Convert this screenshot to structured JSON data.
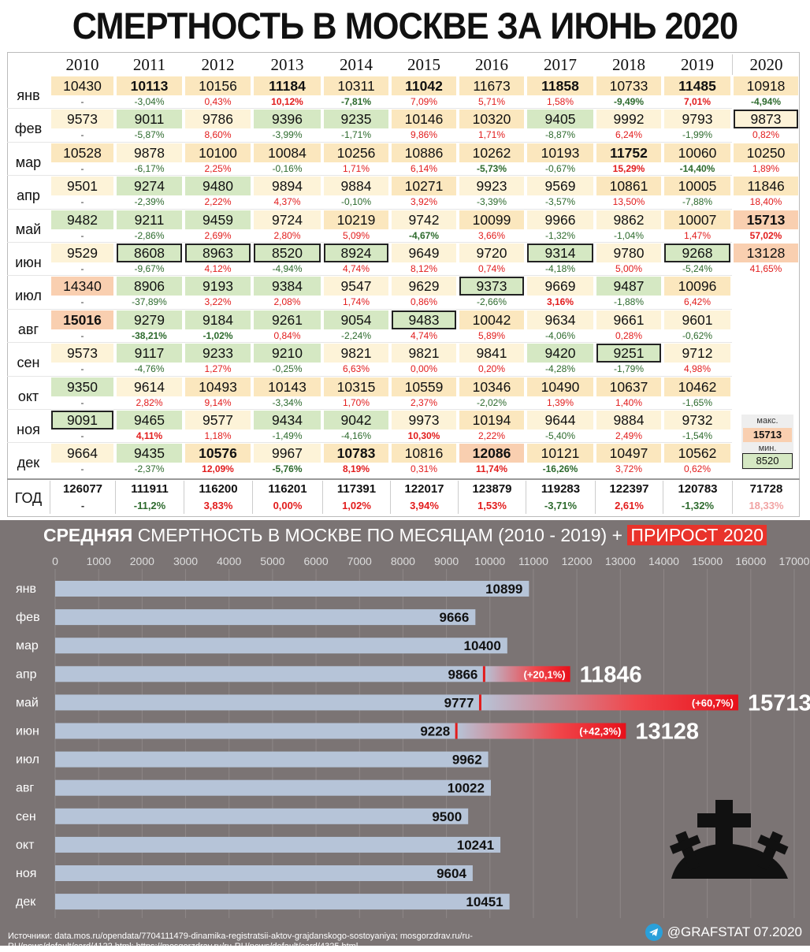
{
  "title": "СМЕРТНОСТЬ В МОСКВЕ ЗА ИЮНЬ 2020",
  "table": {
    "years": [
      "2010",
      "2011",
      "2012",
      "2013",
      "2014",
      "2015",
      "2016",
      "2017",
      "2018",
      "2019",
      "2020"
    ],
    "months": [
      "янв",
      "фев",
      "мар",
      "апр",
      "май",
      "июн",
      "июл",
      "авг",
      "сен",
      "окт",
      "ноя",
      "дек"
    ],
    "rows": [
      {
        "values": [
          "10430",
          "10113",
          "10156",
          "11184",
          "10311",
          "11042",
          "11673",
          "11858",
          "10733",
          "11485",
          "10918"
        ],
        "pct": [
          "-",
          "-3,04%",
          "0,43%",
          "10,12%",
          "-7,81%",
          "7,09%",
          "5,71%",
          "1,58%",
          "-9,49%",
          "7,01%",
          "-4,94%"
        ],
        "bold": [
          1,
          3,
          5,
          7,
          9
        ],
        "boldpct": [
          3,
          4,
          8,
          9,
          10
        ],
        "boxed": []
      },
      {
        "values": [
          "9573",
          "9011",
          "9786",
          "9396",
          "9235",
          "10146",
          "10320",
          "9405",
          "9992",
          "9793",
          "9873"
        ],
        "pct": [
          "-",
          "-5,87%",
          "8,60%",
          "-3,99%",
          "-1,71%",
          "9,86%",
          "1,71%",
          "-8,87%",
          "6,24%",
          "-1,99%",
          "0,82%"
        ],
        "bold": [],
        "boldpct": [],
        "boxed": [
          10
        ]
      },
      {
        "values": [
          "10528",
          "9878",
          "10100",
          "10084",
          "10256",
          "10886",
          "10262",
          "10193",
          "11752",
          "10060",
          "10250"
        ],
        "pct": [
          "-",
          "-6,17%",
          "2,25%",
          "-0,16%",
          "1,71%",
          "6,14%",
          "-5,73%",
          "-0,67%",
          "15,29%",
          "-14,40%",
          "1,89%"
        ],
        "bold": [
          8
        ],
        "boldpct": [
          6,
          8,
          9
        ],
        "boxed": []
      },
      {
        "values": [
          "9501",
          "9274",
          "9480",
          "9894",
          "9884",
          "10271",
          "9923",
          "9569",
          "10861",
          "10005",
          "11846"
        ],
        "pct": [
          "-",
          "-2,39%",
          "2,22%",
          "4,37%",
          "-0,10%",
          "3,92%",
          "-3,39%",
          "-3,57%",
          "13,50%",
          "-7,88%",
          "18,40%"
        ],
        "bold": [],
        "boldpct": [],
        "boxed": []
      },
      {
        "values": [
          "9482",
          "9211",
          "9459",
          "9724",
          "10219",
          "9742",
          "10099",
          "9966",
          "9862",
          "10007",
          "15713"
        ],
        "pct": [
          "-",
          "-2,86%",
          "2,69%",
          "2,80%",
          "5,09%",
          "-4,67%",
          "3,66%",
          "-1,32%",
          "-1,04%",
          "1,47%",
          "57,02%"
        ],
        "bold": [
          10
        ],
        "boldpct": [
          5,
          10
        ],
        "boxed": []
      },
      {
        "values": [
          "9529",
          "8608",
          "8963",
          "8520",
          "8924",
          "9649",
          "9720",
          "9314",
          "9780",
          "9268",
          "13128"
        ],
        "pct": [
          "-",
          "-9,67%",
          "4,12%",
          "-4,94%",
          "4,74%",
          "8,12%",
          "0,74%",
          "-4,18%",
          "5,00%",
          "-5,24%",
          "41,65%"
        ],
        "bold": [],
        "boldpct": [],
        "boxed": [
          1,
          2,
          3,
          4,
          7,
          9
        ]
      },
      {
        "values": [
          "14340",
          "8906",
          "9193",
          "9384",
          "9547",
          "9629",
          "9373",
          "9669",
          "9487",
          "10096",
          ""
        ],
        "pct": [
          "-",
          "-37,89%",
          "3,22%",
          "2,08%",
          "1,74%",
          "0,86%",
          "-2,66%",
          "3,16%",
          "-1,88%",
          "6,42%",
          ""
        ],
        "bold": [],
        "boldpct": [
          7
        ],
        "boxed": [
          6
        ]
      },
      {
        "values": [
          "15016",
          "9279",
          "9184",
          "9261",
          "9054",
          "9483",
          "10042",
          "9634",
          "9661",
          "9601",
          ""
        ],
        "pct": [
          "-",
          "-38,21%",
          "-1,02%",
          "0,84%",
          "-2,24%",
          "4,74%",
          "5,89%",
          "-4,06%",
          "0,28%",
          "-0,62%",
          ""
        ],
        "bold": [
          0
        ],
        "boldpct": [
          1,
          2
        ],
        "boxed": [
          5
        ]
      },
      {
        "values": [
          "9573",
          "9117",
          "9233",
          "9210",
          "9821",
          "9821",
          "9841",
          "9420",
          "9251",
          "9712",
          ""
        ],
        "pct": [
          "-",
          "-4,76%",
          "1,27%",
          "-0,25%",
          "6,63%",
          "0,00%",
          "0,20%",
          "-4,28%",
          "-1,79%",
          "4,98%",
          ""
        ],
        "bold": [],
        "boldpct": [],
        "boxed": [
          8
        ]
      },
      {
        "values": [
          "9350",
          "9614",
          "10493",
          "10143",
          "10315",
          "10559",
          "10346",
          "10490",
          "10637",
          "10462",
          ""
        ],
        "pct": [
          "-",
          "2,82%",
          "9,14%",
          "-3,34%",
          "1,70%",
          "2,37%",
          "-2,02%",
          "1,39%",
          "1,40%",
          "-1,65%",
          ""
        ],
        "bold": [],
        "boldpct": [],
        "boxed": []
      },
      {
        "values": [
          "9091",
          "9465",
          "9577",
          "9434",
          "9042",
          "9973",
          "10194",
          "9644",
          "9884",
          "9732",
          ""
        ],
        "pct": [
          "-",
          "4,11%",
          "1,18%",
          "-1,49%",
          "-4,16%",
          "10,30%",
          "2,22%",
          "-5,40%",
          "2,49%",
          "-1,54%",
          ""
        ],
        "bold": [],
        "boldpct": [
          1,
          5
        ],
        "boxed": [
          0
        ]
      },
      {
        "values": [
          "9664",
          "9435",
          "10576",
          "9967",
          "10783",
          "10816",
          "12086",
          "10121",
          "10497",
          "10562",
          ""
        ],
        "pct": [
          "-",
          "-2,37%",
          "12,09%",
          "-5,76%",
          "8,19%",
          "0,31%",
          "11,74%",
          "-16,26%",
          "3,72%",
          "0,62%",
          ""
        ],
        "bold": [
          2,
          4,
          6
        ],
        "boldpct": [
          2,
          3,
          4,
          6,
          7
        ],
        "boxed": []
      }
    ],
    "year_label": "ГОД",
    "totals": [
      "126077",
      "111911",
      "116200",
      "116201",
      "117391",
      "122017",
      "123879",
      "119283",
      "122397",
      "120783",
      "71728"
    ],
    "total_pct": [
      "-",
      "-11,2%",
      "3,83%",
      "0,00%",
      "1,02%",
      "3,94%",
      "1,53%",
      "-3,71%",
      "2,61%",
      "-1,32%",
      "18,33%"
    ],
    "legend": {
      "max_label": "макс.",
      "max_value": "15713",
      "min_label": "мин.",
      "min_value": "8520"
    }
  },
  "colors": {
    "green": "#d5e8c3",
    "yellow_light": "#fdf3d8",
    "yellow": "#fbe7be",
    "orange": "#f9cfb0",
    "red": "#e21c1c",
    "dark_green": "#2d6a2d",
    "panel": "#7b7474",
    "bar": "#b6c4d8"
  },
  "chart_title": {
    "part1": "СРЕДНЯЯ",
    "part2": " СМЕРТНОСТЬ В МОСКВЕ ПО МЕСЯЦАМ (2010 - 2019) + ",
    "part3": "ПРИРОСТ 2020"
  },
  "chart_data": {
    "type": "bar",
    "orientation": "horizontal",
    "categories": [
      "янв",
      "фев",
      "мар",
      "апр",
      "май",
      "июн",
      "июл",
      "авг",
      "сен",
      "окт",
      "ноя",
      "дек"
    ],
    "values": [
      10899,
      9666,
      10400,
      9866,
      9777,
      9228,
      9962,
      10022,
      9500,
      10241,
      9604,
      10451
    ],
    "increase_2020": [
      {
        "month": "апр",
        "value": 11846,
        "label": "(+20,1%)"
      },
      {
        "month": "май",
        "value": 15713,
        "label": "(+60,7%)"
      },
      {
        "month": "июн",
        "value": 13128,
        "label": "(+42,3%)"
      }
    ],
    "xlim": [
      0,
      17000
    ],
    "ticks": [
      "0",
      "1000",
      "2000",
      "3000",
      "4000",
      "5000",
      "6000",
      "7000",
      "8000",
      "9000",
      "10000",
      "11000",
      "12000",
      "13000",
      "14000",
      "15000",
      "16000",
      "17000"
    ],
    "grid": true
  },
  "sources": "Источники: data.mos.ru/opendata/7704111479-dinamika-registratsii-aktov-grajdanskogo-sostoyaniya; mosgorzdrav.ru/ru-RU/news/default/card/4122.html; https://mosgorzdrav.ru/ru-RU/news/default/card/4325.html",
  "credit": "@GRAFSTAT 07.2020",
  "icons": {
    "telegram": "telegram-icon",
    "graves": "graves-icon"
  }
}
